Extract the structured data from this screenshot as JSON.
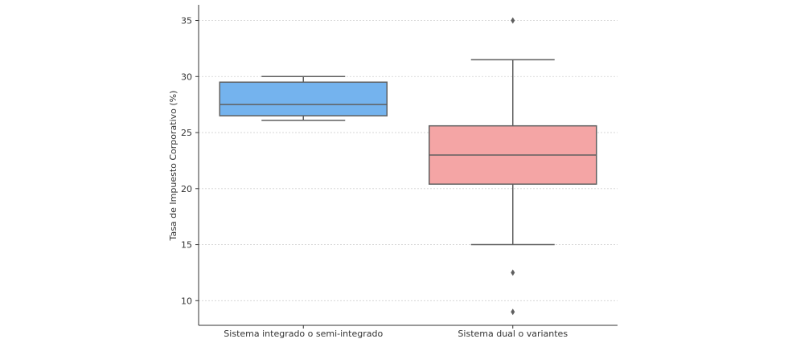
{
  "chart_data": {
    "type": "box",
    "title": "",
    "xlabel": "",
    "ylabel": "Tasa de Impuesto Corporativo (%)",
    "ylim": [
      7.8,
      36.4
    ],
    "yticks": [
      10,
      15,
      20,
      25,
      30,
      35
    ],
    "grid": "horizontal",
    "categories": [
      "Sistema integrado o semi-integrado",
      "Sistema dual o variantes"
    ],
    "boxes": [
      {
        "category": "Sistema integrado o semi-integrado",
        "whisker_low": 26.1,
        "q1": 26.5,
        "median": 27.5,
        "q3": 29.5,
        "whisker_high": 30.0,
        "outliers": [],
        "color": "#74b3ee"
      },
      {
        "category": "Sistema dual o variantes",
        "whisker_low": 15.0,
        "q1": 20.4,
        "median": 23.0,
        "q3": 25.6,
        "whisker_high": 31.5,
        "outliers": [
          35.0,
          12.5,
          9.0
        ],
        "color": "#f4a5a5"
      }
    ]
  }
}
